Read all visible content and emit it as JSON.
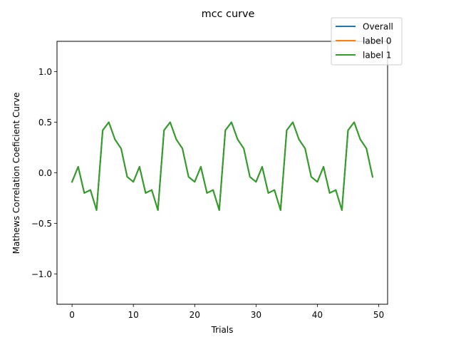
{
  "chart_data": {
    "type": "line",
    "title": "mcc curve",
    "xlabel": "Trials",
    "ylabel": "Mathews Correlation Coeficient Curve",
    "xlim": [
      -2.45,
      51.45
    ],
    "ylim": [
      -1.3,
      1.3
    ],
    "xticks": [
      0,
      10,
      20,
      30,
      40,
      50
    ],
    "yticks": [
      -1.0,
      -0.5,
      0.0,
      0.5,
      1.0
    ],
    "ytick_labels": [
      "−1.0",
      "−0.5",
      "0.0",
      "0.5",
      "1.0"
    ],
    "grid": false,
    "legend_position": "top-right",
    "x": [
      0,
      1,
      2,
      3,
      4,
      5,
      6,
      7,
      8,
      9,
      10,
      11,
      12,
      13,
      14,
      15,
      16,
      17,
      18,
      19,
      20,
      21,
      22,
      23,
      24,
      25,
      26,
      27,
      28,
      29,
      30,
      31,
      32,
      33,
      34,
      35,
      36,
      37,
      38,
      39,
      40,
      41,
      42,
      43,
      44,
      45,
      46,
      47,
      48,
      49
    ],
    "series": [
      {
        "name": "Overall",
        "color": "#1f77b4",
        "values": [
          -0.09,
          0.06,
          -0.2,
          -0.17,
          -0.37,
          0.42,
          0.5,
          0.33,
          0.24,
          -0.04,
          -0.09,
          0.06,
          -0.2,
          -0.17,
          -0.37,
          0.42,
          0.5,
          0.33,
          0.24,
          -0.04,
          -0.09,
          0.06,
          -0.2,
          -0.17,
          -0.37,
          0.42,
          0.5,
          0.33,
          0.24,
          -0.04,
          -0.09,
          0.06,
          -0.2,
          -0.17,
          -0.37,
          0.42,
          0.5,
          0.33,
          0.24,
          -0.04,
          -0.09,
          0.06,
          -0.2,
          -0.17,
          -0.37,
          0.42,
          0.5,
          0.33,
          0.24,
          -0.04
        ]
      },
      {
        "name": "label 0",
        "color": "#ff7f0e",
        "values": [
          -0.09,
          0.06,
          -0.2,
          -0.17,
          -0.37,
          0.42,
          0.5,
          0.33,
          0.24,
          -0.04,
          -0.09,
          0.06,
          -0.2,
          -0.17,
          -0.37,
          0.42,
          0.5,
          0.33,
          0.24,
          -0.04,
          -0.09,
          0.06,
          -0.2,
          -0.17,
          -0.37,
          0.42,
          0.5,
          0.33,
          0.24,
          -0.04,
          -0.09,
          0.06,
          -0.2,
          -0.17,
          -0.37,
          0.42,
          0.5,
          0.33,
          0.24,
          -0.04,
          -0.09,
          0.06,
          -0.2,
          -0.17,
          -0.37,
          0.42,
          0.5,
          0.33,
          0.24,
          -0.04
        ]
      },
      {
        "name": "label 1",
        "color": "#2ca02c",
        "values": [
          -0.09,
          0.06,
          -0.2,
          -0.17,
          -0.37,
          0.42,
          0.5,
          0.33,
          0.24,
          -0.04,
          -0.09,
          0.06,
          -0.2,
          -0.17,
          -0.37,
          0.42,
          0.5,
          0.33,
          0.24,
          -0.04,
          -0.09,
          0.06,
          -0.2,
          -0.17,
          -0.37,
          0.42,
          0.5,
          0.33,
          0.24,
          -0.04,
          -0.09,
          0.06,
          -0.2,
          -0.17,
          -0.37,
          0.42,
          0.5,
          0.33,
          0.24,
          -0.04,
          -0.09,
          0.06,
          -0.2,
          -0.17,
          -0.37,
          0.42,
          0.5,
          0.33,
          0.24,
          -0.04
        ]
      }
    ]
  }
}
